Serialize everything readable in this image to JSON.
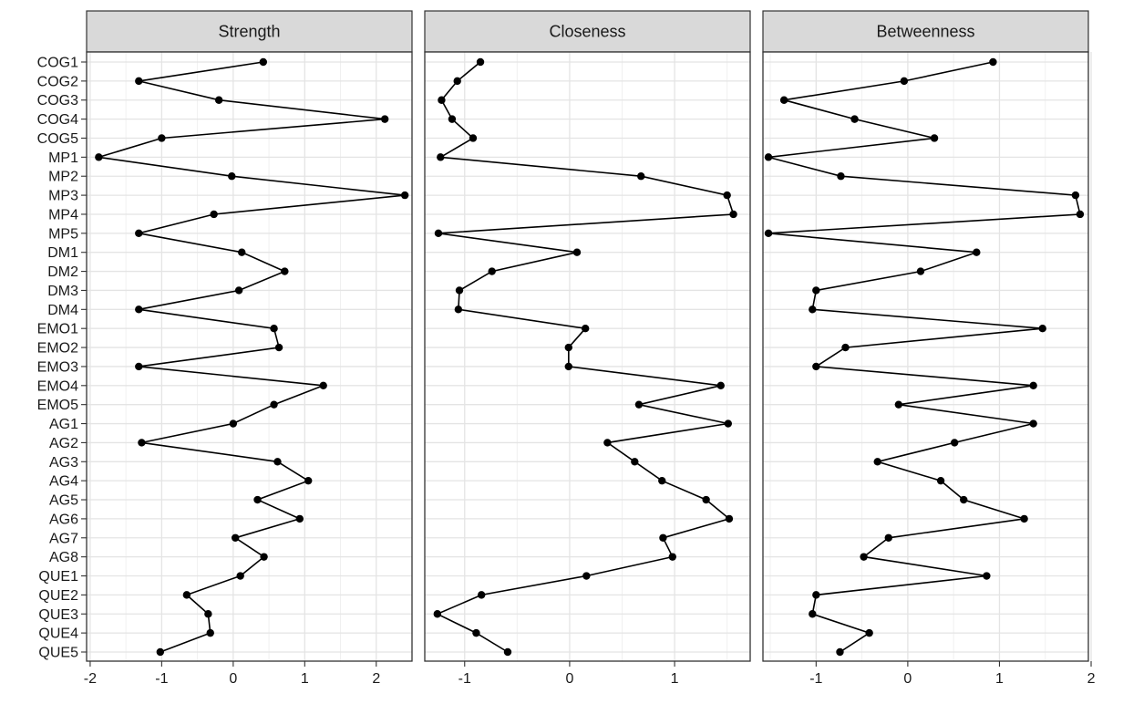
{
  "chart_data": {
    "type": "line",
    "layout": "faceted",
    "point_color": "#000000",
    "line_color": "#000000",
    "strip_fill": "#d9d9d9",
    "grid": true,
    "categories": [
      "COG1",
      "COG2",
      "COG3",
      "COG4",
      "COG5",
      "MP1",
      "MP2",
      "MP3",
      "MP4",
      "MP5",
      "DM1",
      "DM2",
      "DM3",
      "DM4",
      "EMO1",
      "EMO2",
      "EMO3",
      "EMO4",
      "EMO5",
      "AG1",
      "AG2",
      "AG3",
      "AG4",
      "AG5",
      "AG6",
      "AG7",
      "AG8",
      "QUE1",
      "QUE2",
      "QUE3",
      "QUE4",
      "QUE5"
    ],
    "panels": [
      {
        "name": "Strength",
        "xlim": [
          -2.05,
          2.5
        ],
        "xticks": [
          -2,
          -1,
          0,
          1,
          2
        ],
        "xtick_labels": [
          "-2",
          "-1",
          "0",
          "1",
          "2"
        ],
        "values": [
          0.42,
          -1.32,
          -0.2,
          2.12,
          -1.0,
          -1.88,
          -0.02,
          2.4,
          -0.27,
          -1.32,
          0.12,
          0.72,
          0.08,
          -1.32,
          0.57,
          0.64,
          -1.32,
          1.26,
          0.57,
          0.0,
          -1.28,
          0.62,
          1.05,
          0.34,
          0.93,
          0.03,
          0.43,
          0.1,
          -0.65,
          -0.35,
          -0.32,
          -1.02
        ]
      },
      {
        "name": "Closeness",
        "xlim": [
          -1.38,
          1.72
        ],
        "xticks": [
          -1,
          0,
          1
        ],
        "xtick_labels": [
          "-1",
          "0",
          "1"
        ],
        "values": [
          -0.85,
          -1.07,
          -1.22,
          -1.12,
          -0.92,
          -1.23,
          0.68,
          1.5,
          1.56,
          -1.25,
          0.07,
          -0.74,
          -1.05,
          -1.06,
          0.15,
          -0.01,
          -0.01,
          1.44,
          0.66,
          1.51,
          0.36,
          0.62,
          0.88,
          1.3,
          1.52,
          0.89,
          0.98,
          0.16,
          -0.84,
          -1.26,
          -0.89,
          -0.59
        ]
      },
      {
        "name": "Betweenness",
        "xlim": [
          -1.58,
          1.97
        ],
        "xticks": [
          -1,
          0,
          1,
          2
        ],
        "xtick_labels": [
          "-1",
          "0",
          "1",
          "2"
        ],
        "values": [
          0.93,
          -0.04,
          -1.35,
          -0.58,
          0.29,
          -1.52,
          -0.73,
          1.83,
          1.88,
          -1.52,
          0.75,
          0.14,
          -1.0,
          -1.04,
          1.47,
          -0.68,
          -1.0,
          1.37,
          -0.1,
          1.37,
          0.51,
          -0.33,
          0.36,
          0.61,
          1.27,
          -0.21,
          -0.48,
          0.86,
          -1.0,
          -1.04,
          -0.42,
          -0.74
        ]
      }
    ]
  }
}
